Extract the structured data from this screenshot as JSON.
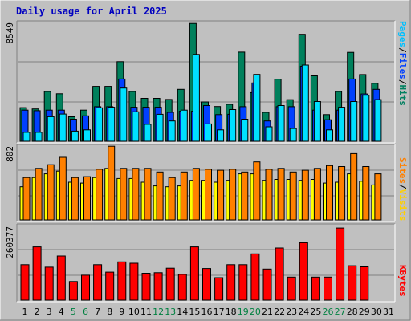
{
  "title": "Daily usage for April 2025",
  "colors": {
    "background": "#c0c0c0",
    "pages": "#00e0ff",
    "files": "#0040ff",
    "hits": "#00805c",
    "visits": "#ffff00",
    "sites": "#ff8000",
    "kbytes": "#ff0000",
    "weekend_label": "#008040"
  },
  "chart_data": [
    {
      "type": "bar",
      "panel": "hits-files-pages",
      "ymax_label": "8549",
      "ylim": [
        0,
        8549
      ],
      "categories": [
        "1",
        "2",
        "3",
        "4",
        "5",
        "6",
        "7",
        "8",
        "9",
        "10",
        "11",
        "12",
        "13",
        "14",
        "15",
        "16",
        "17",
        "18",
        "19",
        "20",
        "21",
        "22",
        "23",
        "24",
        "25",
        "26",
        "27",
        "28",
        "29",
        "30",
        "31"
      ],
      "weekend_days": [
        "5",
        "6",
        "12",
        "13",
        "19",
        "20",
        "26",
        "27"
      ],
      "legend": [
        "Pages",
        "Files",
        "Hits"
      ],
      "series": [
        {
          "name": "Hits",
          "values": [
            2420,
            2330,
            3580,
            3420,
            1760,
            2240,
            3950,
            3950,
            5730,
            3580,
            3090,
            3090,
            3010,
            3740,
            8480,
            2830,
            2500,
            2660,
            6420,
            3500,
            2080,
            4470,
            2990,
            7700,
            4710,
            1920,
            3580,
            6400,
            4800,
            4170,
            0
          ]
        },
        {
          "name": "Files",
          "values": [
            2240,
            2200,
            2240,
            2240,
            1590,
            1830,
            2490,
            2490,
            4480,
            2450,
            2450,
            2450,
            2080,
            2160,
            2160,
            2570,
            1920,
            1940,
            2490,
            4200,
            1460,
            2490,
            2490,
            5400,
            2240,
            1550,
            2240,
            4480,
            3400,
            3740,
            0
          ]
        },
        {
          "name": "Pages",
          "values": [
            640,
            640,
            1770,
            1960,
            730,
            820,
            2410,
            2450,
            3830,
            2120,
            1220,
            1940,
            1460,
            2240,
            6250,
            1250,
            820,
            2280,
            1590,
            4810,
            1040,
            2570,
            920,
            5490,
            2860,
            820,
            2450,
            2860,
            3310,
            3000,
            0
          ]
        }
      ]
    },
    {
      "type": "bar",
      "panel": "visits-sites",
      "ymax_label": "802",
      "ylim": [
        0,
        802
      ],
      "categories": [
        "1",
        "2",
        "3",
        "4",
        "5",
        "6",
        "7",
        "8",
        "9",
        "10",
        "11",
        "12",
        "13",
        "14",
        "15",
        "16",
        "17",
        "18",
        "19",
        "20",
        "21",
        "22",
        "23",
        "24",
        "25",
        "26",
        "27",
        "28",
        "29",
        "30",
        "31"
      ],
      "legend": [
        "Sites",
        "Visits"
      ],
      "series": [
        {
          "name": "Visits",
          "values": [
            360,
            460,
            500,
            530,
            410,
            400,
            460,
            560,
            450,
            450,
            410,
            370,
            360,
            370,
            430,
            430,
            410,
            430,
            500,
            500,
            430,
            440,
            440,
            430,
            440,
            400,
            410,
            500,
            420,
            380,
            0
          ]
        },
        {
          "name": "Sites",
          "values": [
            460,
            560,
            600,
            680,
            460,
            470,
            550,
            800,
            560,
            560,
            560,
            520,
            460,
            520,
            560,
            550,
            540,
            550,
            520,
            630,
            550,
            560,
            520,
            540,
            560,
            590,
            580,
            720,
            580,
            500,
            0
          ]
        }
      ]
    },
    {
      "type": "bar",
      "panel": "kbytes",
      "ymax_label": "260377",
      "ylim": [
        0,
        260377
      ],
      "categories": [
        "1",
        "2",
        "3",
        "4",
        "5",
        "6",
        "7",
        "8",
        "9",
        "10",
        "11",
        "12",
        "13",
        "14",
        "15",
        "16",
        "17",
        "18",
        "19",
        "20",
        "21",
        "22",
        "23",
        "24",
        "25",
        "26",
        "27",
        "28",
        "29",
        "30",
        "31"
      ],
      "legend": [
        "KBytes"
      ],
      "series": [
        {
          "name": "KBytes",
          "values": [
            128000,
            192000,
            119000,
            159000,
            67000,
            90000,
            128000,
            101000,
            138000,
            133000,
            97000,
            99000,
            115000,
            93000,
            192000,
            114000,
            81000,
            128000,
            128000,
            167000,
            112000,
            188000,
            83000,
            207000,
            83000,
            83000,
            260000,
            124000,
            120000,
            0,
            0
          ]
        }
      ]
    }
  ],
  "right_labels": {
    "top": [
      {
        "text": "Pages",
        "color": "#00c0ff"
      },
      {
        "text": "/",
        "color": "#000000"
      },
      {
        "text": "Files",
        "color": "#0040ff"
      },
      {
        "text": "/",
        "color": "#000000"
      },
      {
        "text": "Hits",
        "color": "#008060"
      }
    ],
    "mid": [
      {
        "text": "Sites",
        "color": "#ff8000"
      },
      {
        "text": "/",
        "color": "#000000"
      },
      {
        "text": "Visits",
        "color": "#ffd000"
      }
    ],
    "bot": [
      {
        "text": "KBytes",
        "color": "#ff0000"
      }
    ]
  }
}
